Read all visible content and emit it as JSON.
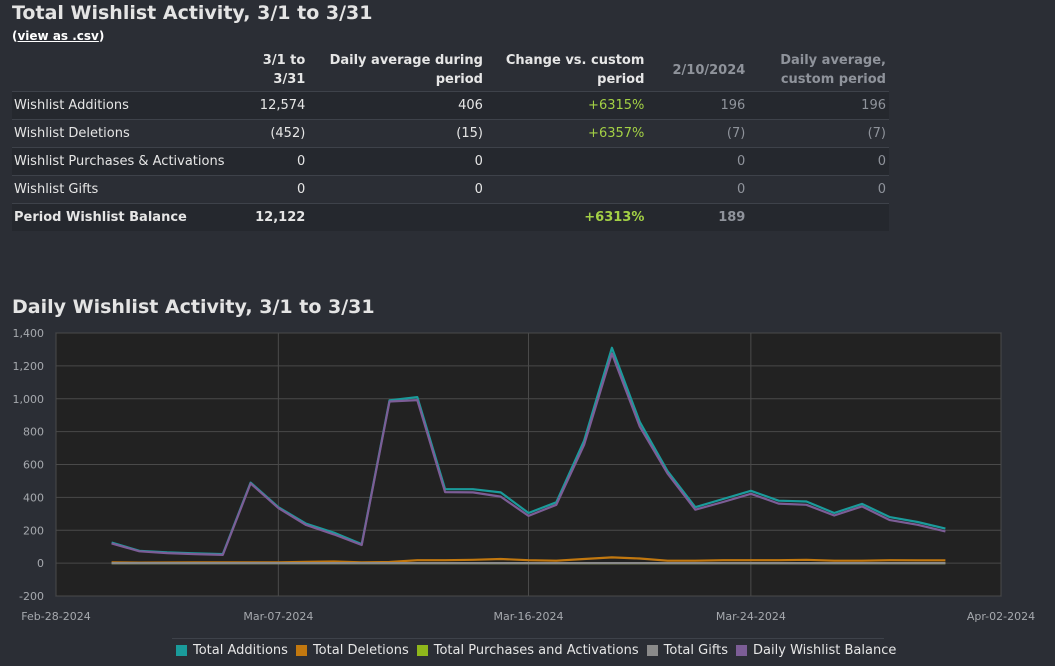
{
  "summary": {
    "title": "Total Wishlist Activity, 3/1 to 3/31",
    "csv_link": "view as .csv",
    "headers": [
      "",
      "3/1 to 3/31",
      "Daily average during period",
      "Change vs. custom period",
      "2/10/2024",
      "Daily average, custom period"
    ],
    "rows": [
      {
        "label": "Wishlist Additions",
        "total": "12,574",
        "daily_avg": "406",
        "change": "+6315%",
        "custom": "196",
        "custom_avg": "196"
      },
      {
        "label": "Wishlist Deletions",
        "total": "(452)",
        "daily_avg": "(15)",
        "change": "+6357%",
        "custom": "(7)",
        "custom_avg": "(7)"
      },
      {
        "label": "Wishlist Purchases & Activations",
        "total": "0",
        "daily_avg": "0",
        "change": "",
        "custom": "0",
        "custom_avg": "0"
      },
      {
        "label": "Wishlist Gifts",
        "total": "0",
        "daily_avg": "0",
        "change": "",
        "custom": "0",
        "custom_avg": "0"
      },
      {
        "label": "Period Wishlist Balance",
        "total": "12,122",
        "daily_avg": "",
        "change": "+6313%",
        "custom": "189",
        "custom_avg": ""
      }
    ]
  },
  "chart_title": "Daily Wishlist Activity, 3/1 to 3/31",
  "chart_data": {
    "type": "line",
    "x": [
      "2024-03-01",
      "2024-03-02",
      "2024-03-03",
      "2024-03-04",
      "2024-03-05",
      "2024-03-06",
      "2024-03-07",
      "2024-03-08",
      "2024-03-09",
      "2024-03-10",
      "2024-03-11",
      "2024-03-12",
      "2024-03-13",
      "2024-03-14",
      "2024-03-15",
      "2024-03-16",
      "2024-03-17",
      "2024-03-18",
      "2024-03-19",
      "2024-03-20",
      "2024-03-21",
      "2024-03-22",
      "2024-03-23",
      "2024-03-24",
      "2024-03-25",
      "2024-03-26",
      "2024-03-27",
      "2024-03-28",
      "2024-03-29",
      "2024-03-30",
      "2024-03-31"
    ],
    "x_ticks": [
      "Feb-28-2024",
      "Mar-07-2024",
      "Mar-16-2024",
      "Mar-24-2024",
      "Apr-02-2024"
    ],
    "ylim": [
      -200,
      1400
    ],
    "y_ticks": [
      "-200",
      "0",
      "200",
      "400",
      "600",
      "800",
      "1,000",
      "1,200",
      "1,400"
    ],
    "grid": true,
    "legend_position": "bottom",
    "series": [
      {
        "name": "Total Additions",
        "color": "#1a9b9b",
        "values": [
          125,
          75,
          65,
          60,
          55,
          490,
          340,
          240,
          185,
          115,
          990,
          1010,
          450,
          450,
          430,
          305,
          370,
          745,
          1310,
          860,
          560,
          340,
          390,
          440,
          380,
          375,
          305,
          360,
          280,
          250,
          210
        ]
      },
      {
        "name": "Total Deletions",
        "color": "#c2780f",
        "values": [
          5,
          3,
          4,
          5,
          5,
          5,
          5,
          8,
          10,
          5,
          7,
          18,
          18,
          20,
          25,
          18,
          15,
          25,
          35,
          28,
          15,
          15,
          18,
          18,
          18,
          20,
          15,
          15,
          18,
          17,
          17
        ]
      },
      {
        "name": "Total Purchases and Activations",
        "color": "#8fb71b",
        "values": [
          0,
          0,
          0,
          0,
          0,
          0,
          0,
          0,
          0,
          0,
          0,
          0,
          0,
          0,
          0,
          0,
          0,
          0,
          0,
          0,
          0,
          0,
          0,
          0,
          0,
          0,
          0,
          0,
          0,
          0,
          0
        ]
      },
      {
        "name": "Total Gifts",
        "color": "#8a8a8a",
        "values": [
          0,
          0,
          0,
          0,
          0,
          0,
          0,
          0,
          0,
          0,
          0,
          0,
          0,
          0,
          0,
          0,
          0,
          0,
          0,
          0,
          0,
          0,
          0,
          0,
          0,
          0,
          0,
          0,
          0,
          0,
          0
        ]
      },
      {
        "name": "Daily Wishlist Balance",
        "color": "#7c5d96",
        "values": [
          120,
          72,
          61,
          55,
          50,
          485,
          335,
          232,
          175,
          110,
          983,
          992,
          432,
          430,
          405,
          287,
          355,
          720,
          1275,
          832,
          545,
          325,
          372,
          422,
          362,
          355,
          290,
          345,
          262,
          233,
          193
        ]
      }
    ]
  }
}
